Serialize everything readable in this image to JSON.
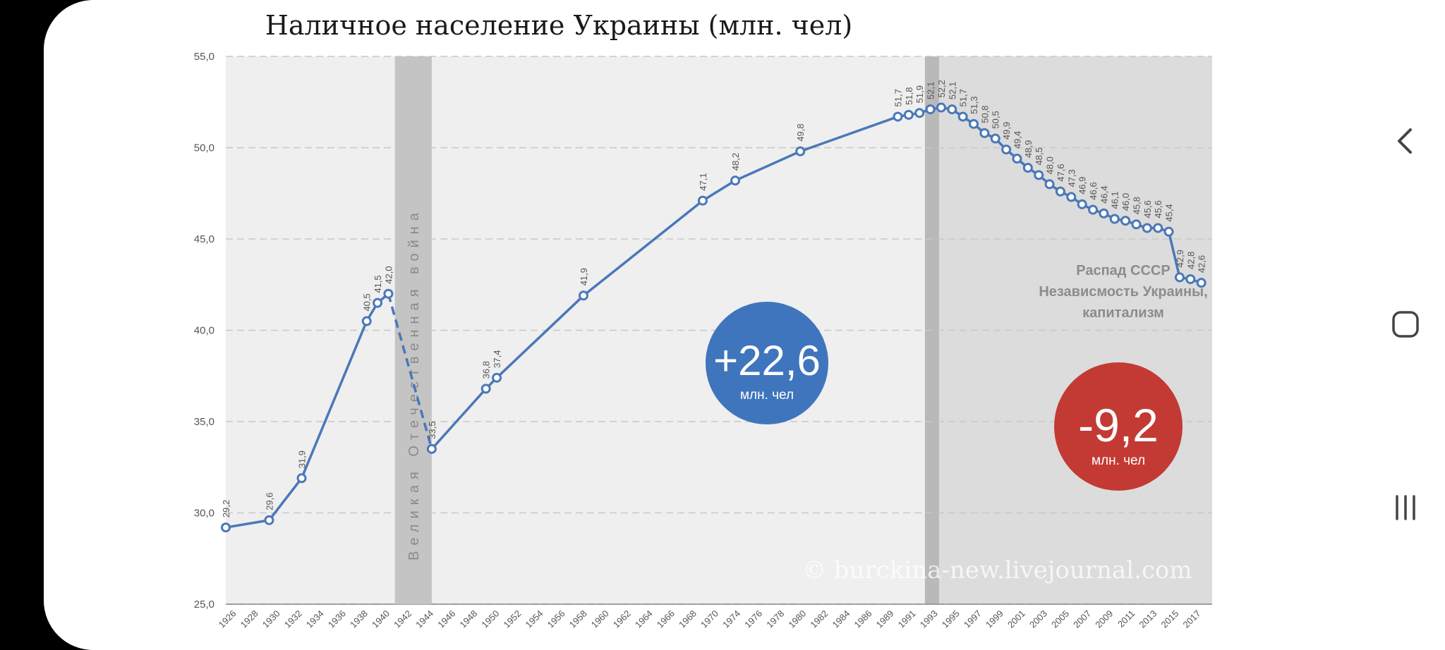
{
  "chart_data": {
    "type": "line",
    "title": "Наличное население Украины (млн. чел)",
    "ylim": [
      25,
      55
    ],
    "y_ticks": [
      "25,0",
      "30,0",
      "35,0",
      "40,0",
      "45,0",
      "50,0",
      "55,0"
    ],
    "x_tick_labels": [
      "1926",
      "1928",
      "1930",
      "1932",
      "1934",
      "1936",
      "1938",
      "1940",
      "1942",
      "1944",
      "1946",
      "1948",
      "1950",
      "1952",
      "1954",
      "1956",
      "1958",
      "1960",
      "1962",
      "1964",
      "1966",
      "1968",
      "1970",
      "1974",
      "1976",
      "1978",
      "1980",
      "1982",
      "1984",
      "1986",
      "1989",
      "1991",
      "1993",
      "1995",
      "1997",
      "1999",
      "2001",
      "2003",
      "2005",
      "2007",
      "2009",
      "2011",
      "2013",
      "2015",
      "2017"
    ],
    "series": [
      {
        "values": [
          {
            "x": 1926,
            "y": 29.2,
            "label": "29,2"
          },
          {
            "x": 1930,
            "y": 29.6,
            "label": "29,6"
          },
          {
            "x": 1933,
            "y": 31.9,
            "label": "31,9"
          },
          {
            "x": 1939,
            "y": 40.5,
            "label": "40,5"
          },
          {
            "x": 1940,
            "y": 41.5,
            "label": "41,5"
          },
          {
            "x": 1941,
            "y": 42.0,
            "label": "42,0"
          },
          {
            "x": 1945,
            "y": 33.5,
            "label": "33,5"
          },
          {
            "x": 1950,
            "y": 36.8,
            "label": "36,8"
          },
          {
            "x": 1951,
            "y": 37.4,
            "label": "37,4"
          },
          {
            "x": 1959,
            "y": 41.9,
            "label": "41,9"
          },
          {
            "x": 1970,
            "y": 47.1,
            "label": "47,1"
          },
          {
            "x": 1973,
            "y": 48.2,
            "label": "48,2"
          },
          {
            "x": 1979,
            "y": 49.8,
            "label": "49,8"
          },
          {
            "x": 1988,
            "y": 51.7,
            "label": "51,7"
          },
          {
            "x": 1989,
            "y": 51.8,
            "label": "51,8"
          },
          {
            "x": 1990,
            "y": 51.9,
            "label": "51,9"
          },
          {
            "x": 1991,
            "y": 52.1,
            "label": "52,1"
          },
          {
            "x": 1992,
            "y": 52.2,
            "label": "52,2"
          },
          {
            "x": 1993,
            "y": 52.1,
            "label": "52,1"
          },
          {
            "x": 1994,
            "y": 51.7,
            "label": "51,7"
          },
          {
            "x": 1995,
            "y": 51.3,
            "label": "51,3"
          },
          {
            "x": 1996,
            "y": 50.8,
            "label": "50,8"
          },
          {
            "x": 1997,
            "y": 50.5,
            "label": "50,5"
          },
          {
            "x": 1998,
            "y": 49.9,
            "label": "49,9"
          },
          {
            "x": 1999,
            "y": 49.4,
            "label": "49,4"
          },
          {
            "x": 2000,
            "y": 48.9,
            "label": "48,9"
          },
          {
            "x": 2001,
            "y": 48.5,
            "label": "48,5"
          },
          {
            "x": 2002,
            "y": 48.0,
            "label": "48,0"
          },
          {
            "x": 2003,
            "y": 47.6,
            "label": "47,6"
          },
          {
            "x": 2004,
            "y": 47.3,
            "label": "47,3"
          },
          {
            "x": 2005,
            "y": 46.9,
            "label": "46,9"
          },
          {
            "x": 2006,
            "y": 46.6,
            "label": "46,6"
          },
          {
            "x": 2007,
            "y": 46.4,
            "label": "46,4"
          },
          {
            "x": 2008,
            "y": 46.1,
            "label": "46,1"
          },
          {
            "x": 2009,
            "y": 46.0,
            "label": "46,0"
          },
          {
            "x": 2010,
            "y": 45.8,
            "label": "45,8"
          },
          {
            "x": 2011,
            "y": 45.6,
            "label": "45,6"
          },
          {
            "x": 2012,
            "y": 45.6,
            "label": "45,6"
          },
          {
            "x": 2013,
            "y": 45.4,
            "label": "45,4"
          },
          {
            "x": 2014,
            "y": 42.9,
            "label": "42,9"
          },
          {
            "x": 2015,
            "y": 42.8,
            "label": "42,8"
          },
          {
            "x": 2016,
            "y": 42.6,
            "label": "42,6"
          }
        ]
      }
    ],
    "war_band_label": "Великая Отечественная война",
    "circles": [
      {
        "big": "+22,6",
        "small": "млн. чел",
        "color": "#3f75bc"
      },
      {
        "big": "-9,2",
        "small": "млн. чел",
        "color": "#c33a34"
      }
    ],
    "region_annotation": [
      "Распад СССР",
      "Независмость Украины,",
      "капитализм"
    ],
    "watermark": "© burckina-new.livejournal.com",
    "grid": true
  },
  "navigation": {
    "back_icon": "chevron-left-icon",
    "home_icon": "home-square-icon",
    "recents_icon": "recents-bars-icon"
  }
}
